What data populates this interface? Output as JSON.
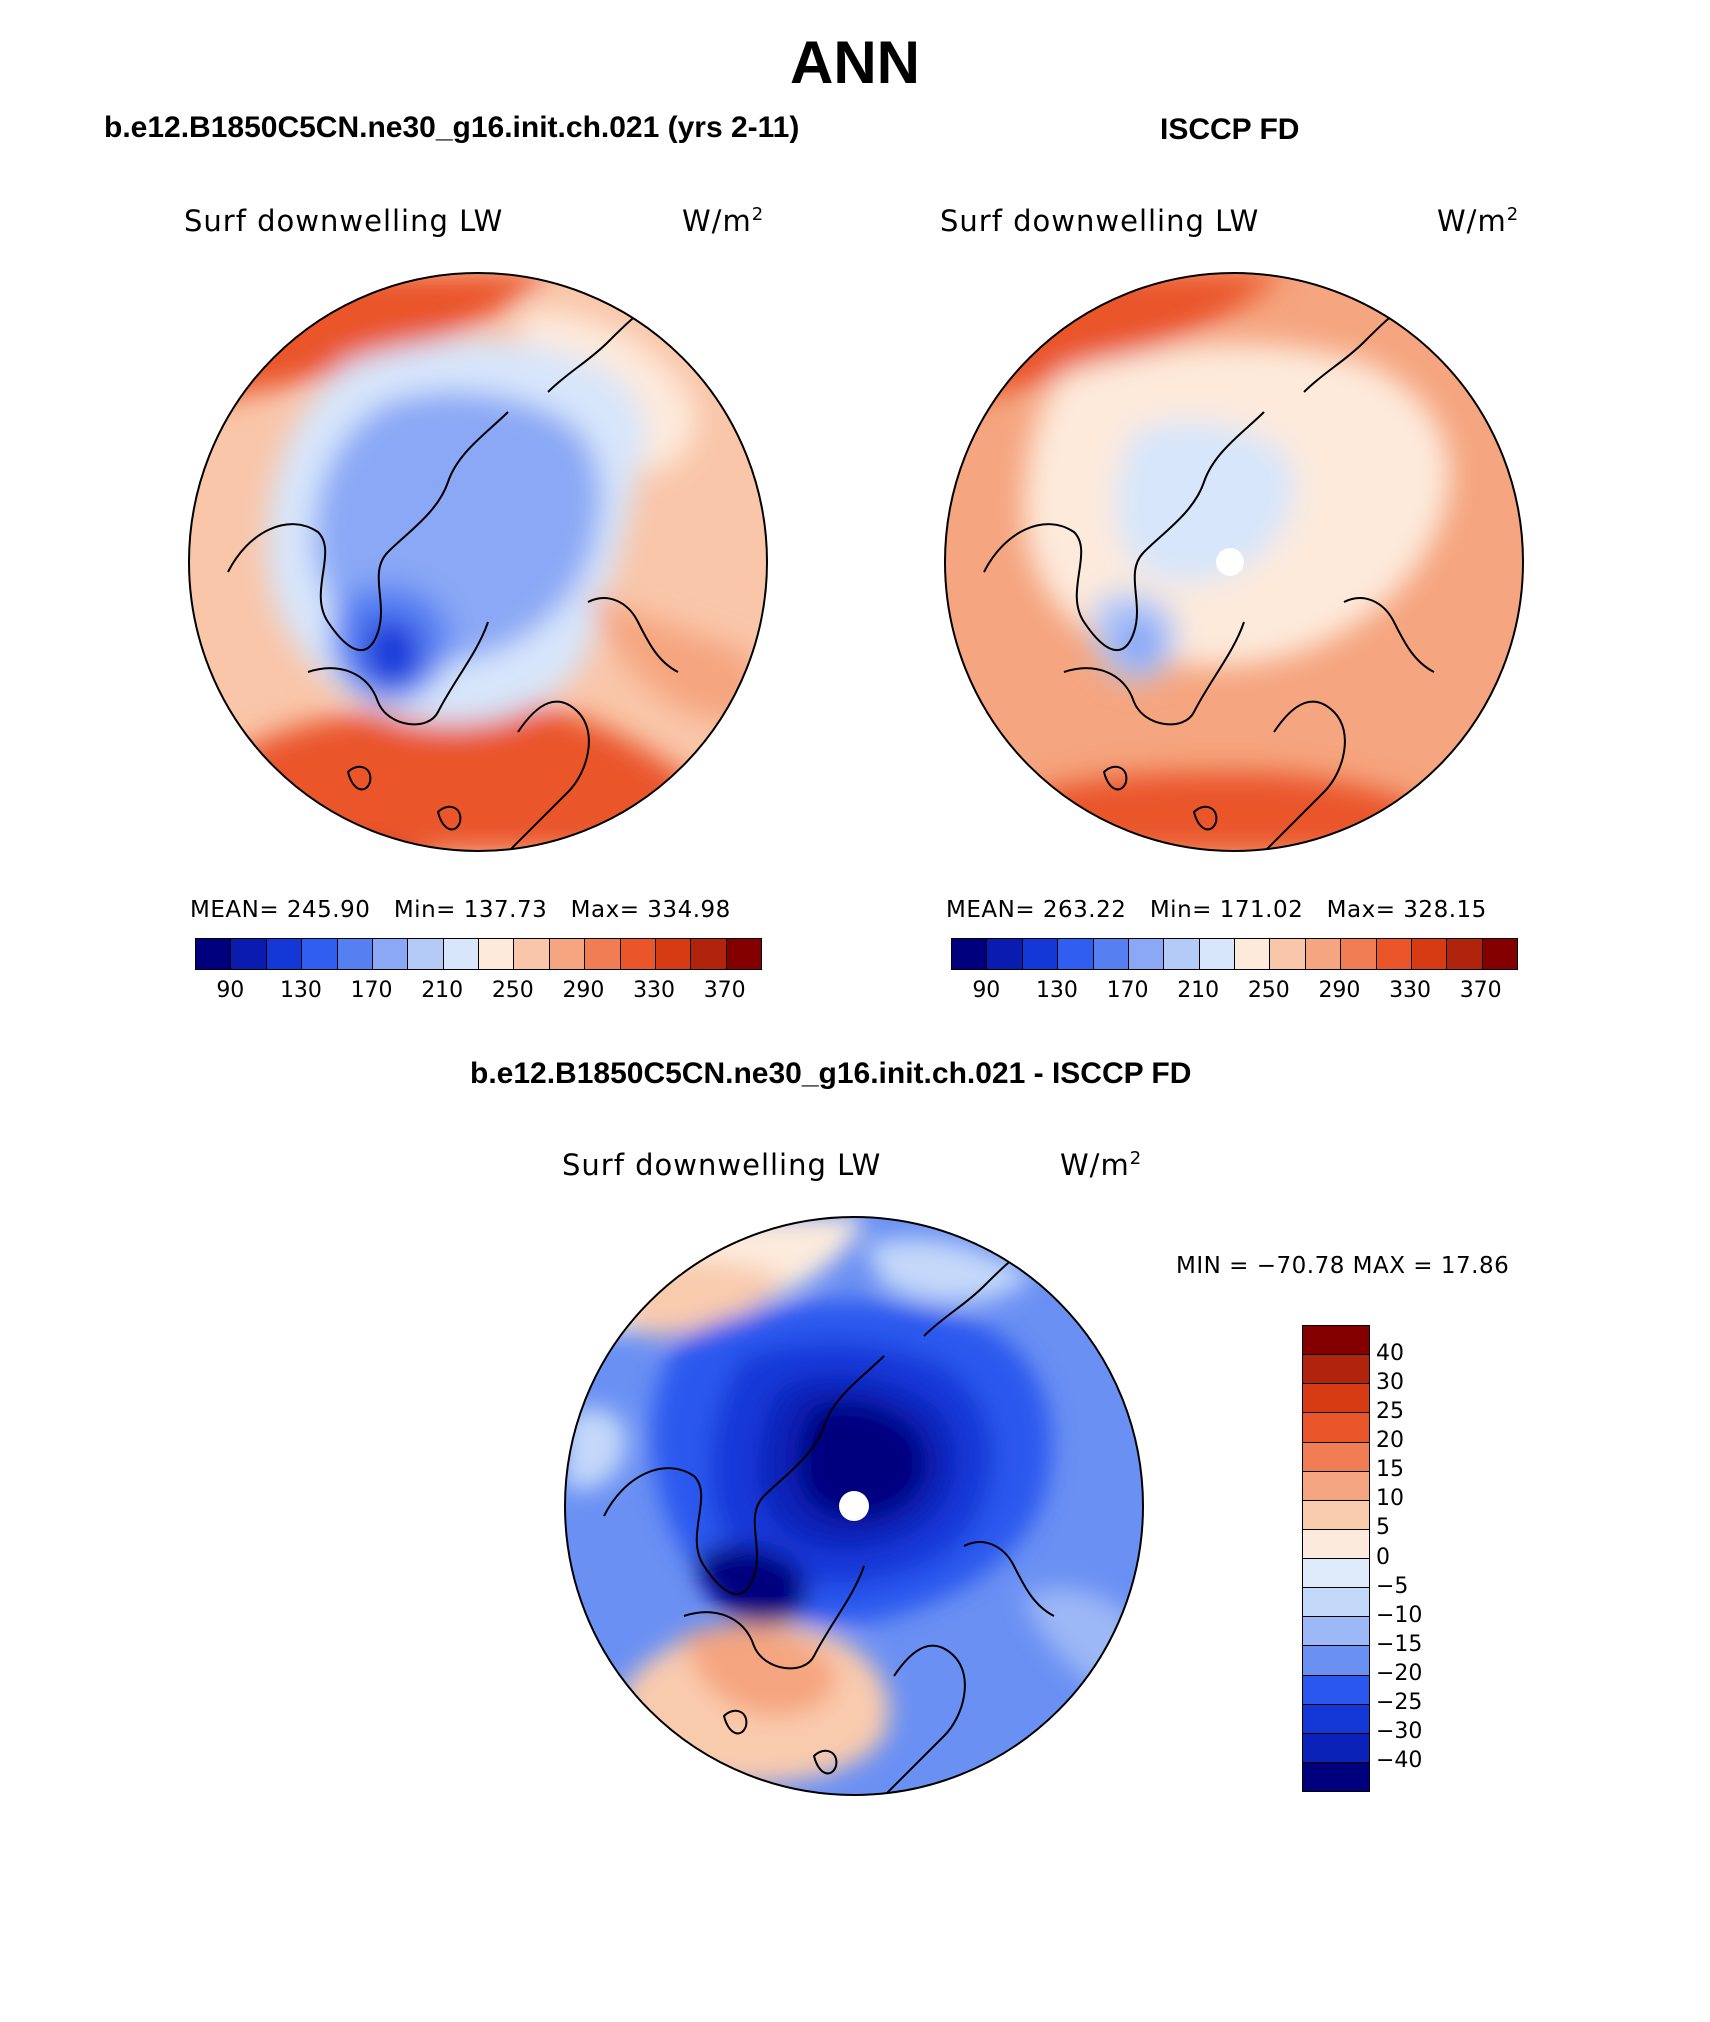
{
  "page_title": "ANN",
  "panels": [
    {
      "title": "b.e12.B1850C5CN.ne30_g16.init.ch.021 (yrs 2-11)",
      "variable": "Surf downwelling LW",
      "units_base": "W/m",
      "units_exp": "2",
      "stats": {
        "mean_label": "MEAN=",
        "mean": "245.90",
        "min_label": "Min=",
        "min": "137.73",
        "max_label": "Max=",
        "max": "334.98"
      },
      "has_pole_hole": false
    },
    {
      "title": "ISCCP FD",
      "variable": "Surf downwelling LW",
      "units_base": "W/m",
      "units_exp": "2",
      "stats": {
        "mean_label": "MEAN=",
        "mean": "263.22",
        "min_label": "Min=",
        "min": "171.02",
        "max_label": "Max=",
        "max": "328.15"
      },
      "has_pole_hole": true
    },
    {
      "title": "b.e12.B1850C5CN.ne30_g16.init.ch.021 - ISCCP FD",
      "variable": "Surf downwelling LW",
      "units_base": "W/m",
      "units_exp": "2",
      "stats_line": "MIN = −70.78 MAX =   17.86",
      "has_pole_hole": true
    }
  ],
  "abs_colorbar": {
    "colors": [
      "#00007f",
      "#0a1cb0",
      "#1437d8",
      "#2f5ef0",
      "#567ff2",
      "#8aa8f5",
      "#b5cbf7",
      "#d7e6fb",
      "#fdeadb",
      "#f9c6a9",
      "#f5a57f",
      "#f17d54",
      "#ea5529",
      "#d63b13",
      "#b0230c",
      "#840000"
    ],
    "tick_labels": [
      "90",
      "130",
      "170",
      "210",
      "250",
      "290",
      "330",
      "370"
    ]
  },
  "diff_colorbar": {
    "colors": [
      "#00007f",
      "#0a22b8",
      "#1437d8",
      "#2a58ee",
      "#6a90f3",
      "#9db8f6",
      "#c4d8f9",
      "#deebfb",
      "#fcebdc",
      "#f9cbad",
      "#f5a57f",
      "#f17d54",
      "#ea5529",
      "#d63b13",
      "#b0230c",
      "#840000"
    ],
    "tick_labels": [
      "40",
      "30",
      "25",
      "20",
      "15",
      "10",
      "5",
      "0",
      "−5",
      "−10",
      "−15",
      "−20",
      "−25",
      "−30",
      "−40"
    ]
  },
  "colors": {
    "ocean_warm": "#f5a57f",
    "deep_warm": "#ea5529",
    "cold": "#8aa8f5",
    "very_cold": "#1437d8"
  }
}
